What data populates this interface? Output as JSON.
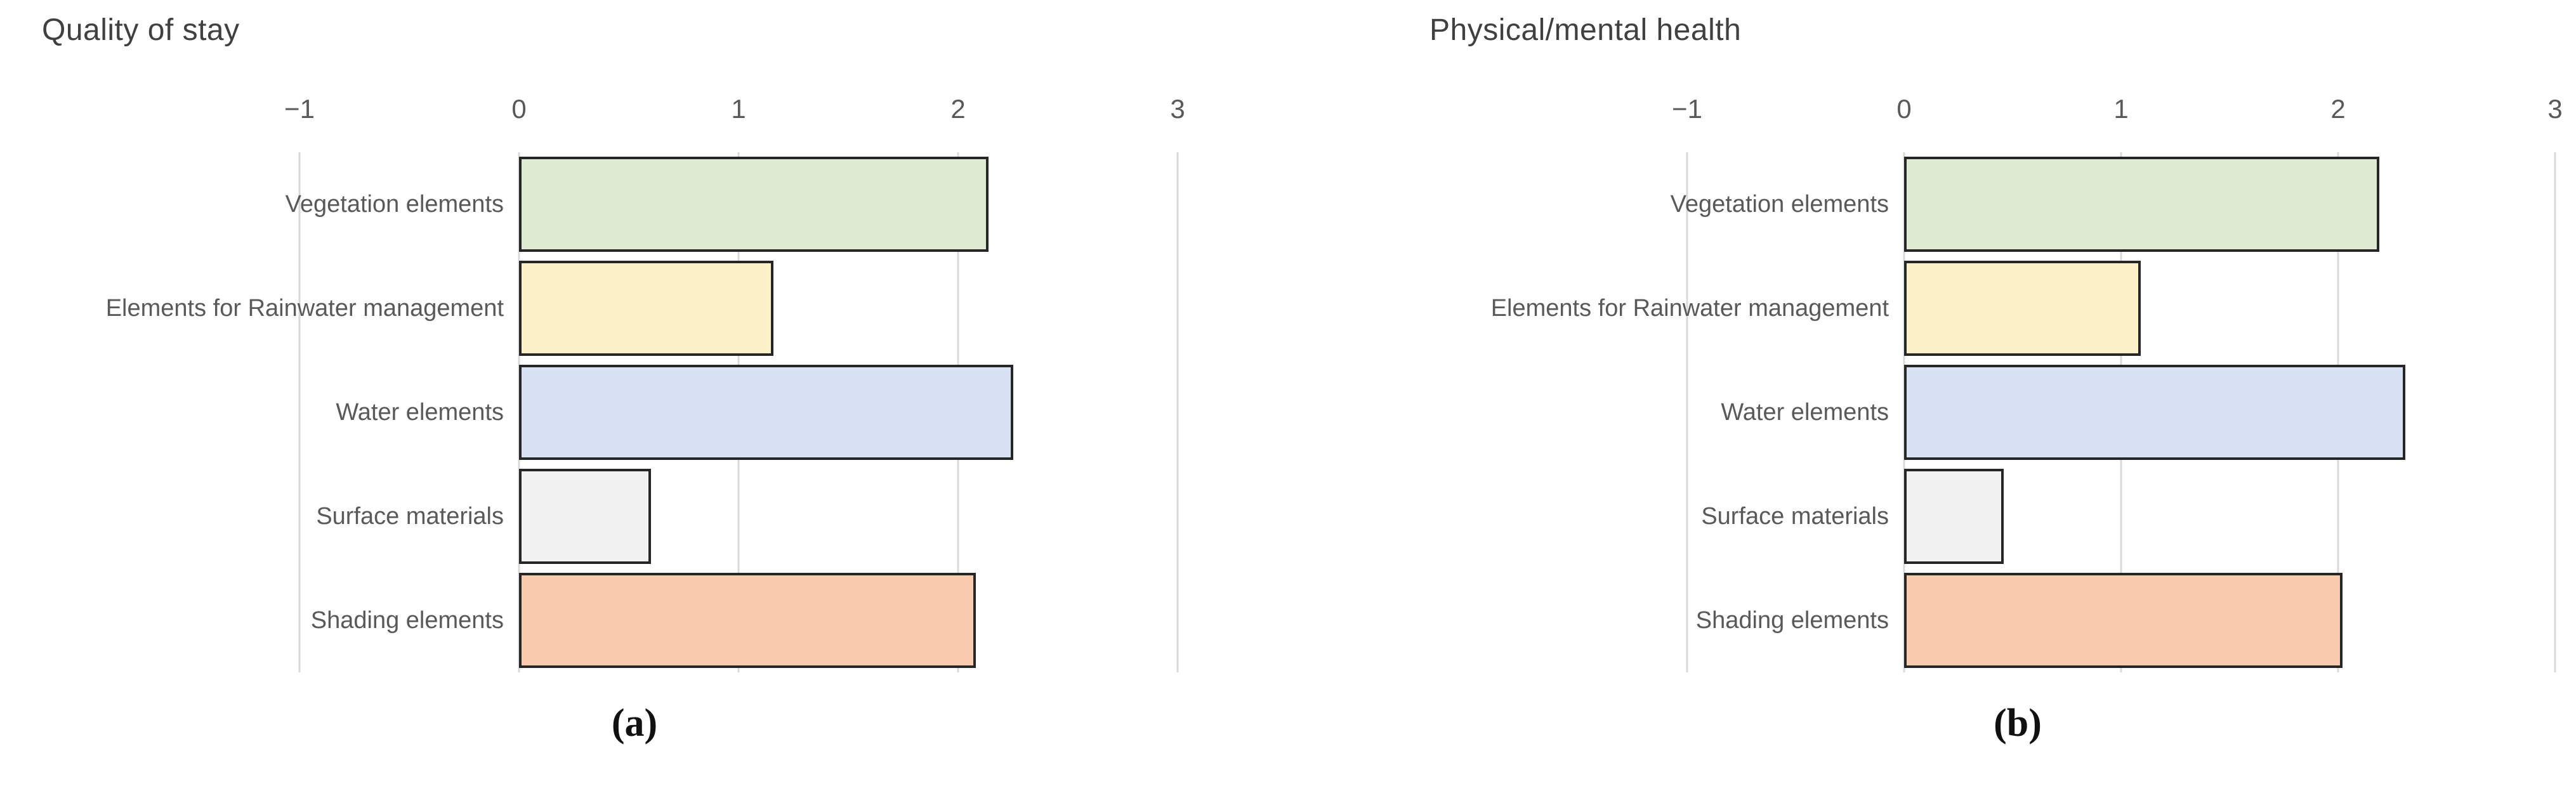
{
  "chart_data": [
    {
      "type": "bar",
      "orientation": "horizontal",
      "title": "Quality of stay",
      "caption": "(a)",
      "categories": [
        "Vegetation elements",
        "Elements for Rainwater management",
        "Water elements",
        "Surface materials",
        "Shading elements"
      ],
      "values": [
        2.14,
        1.16,
        2.25,
        0.6,
        2.08
      ],
      "xlim": [
        -1,
        3
      ],
      "xticks": [
        -1,
        0,
        1,
        2,
        3
      ],
      "xtick_labels": [
        "−1",
        "0",
        "1",
        "2",
        "3"
      ],
      "bar_colors": [
        "#dfead3",
        "#fdf1c9",
        "#d8e2f2",
        "#f1f1f1",
        "#f8cbac"
      ],
      "bar_border_color": "#262626",
      "grid": true,
      "gridline_color": "#d9d9d9",
      "axis_position": "top",
      "legend": "none"
    },
    {
      "type": "bar",
      "orientation": "horizontal",
      "title": "Physical/mental health",
      "caption": "(b)",
      "categories": [
        "Vegetation elements",
        "Elements for Rainwater management",
        "Water elements",
        "Surface materials",
        "Shading elements"
      ],
      "values": [
        2.19,
        1.09,
        2.31,
        0.46,
        2.02
      ],
      "xlim": [
        -1,
        3
      ],
      "xticks": [
        -1,
        0,
        1,
        2,
        3
      ],
      "xtick_labels": [
        "−1",
        "0",
        "1",
        "2",
        "3"
      ],
      "bar_colors": [
        "#dfead3",
        "#fdf1c9",
        "#d8e2f2",
        "#f1f1f1",
        "#f8cbac"
      ],
      "bar_border_color": "#262626",
      "grid": true,
      "gridline_color": "#d9d9d9",
      "axis_position": "top",
      "legend": "none"
    }
  ],
  "styles": {
    "title_color": "#404040",
    "tick_label_color": "#595959",
    "category_label_color": "#595959",
    "caption_color": "#111111",
    "background": "#ffffff"
  }
}
